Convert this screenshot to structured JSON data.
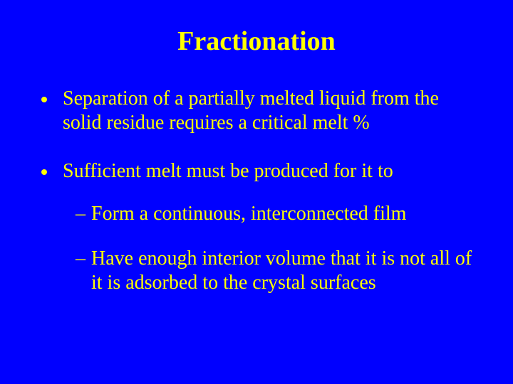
{
  "slide": {
    "background_color": "#0000ff",
    "text_color": "#ffff00",
    "font_family": "Times New Roman",
    "title": "Fractionation",
    "title_fontsize": 38,
    "title_weight": "bold",
    "body_fontsize": 28,
    "bullets": [
      {
        "text": "Separation of a partially melted liquid from the solid residue requires a critical melt %",
        "children": []
      },
      {
        "text": "Sufficient melt must be produced for it to",
        "children": [
          {
            "text": "Form a continuous, interconnected film"
          },
          {
            "text": "Have enough interior volume that it is not all of it is adsorbed to the crystal surfaces"
          }
        ]
      }
    ],
    "bullet_marker_color": "#ffff00",
    "dash_char": "–"
  }
}
